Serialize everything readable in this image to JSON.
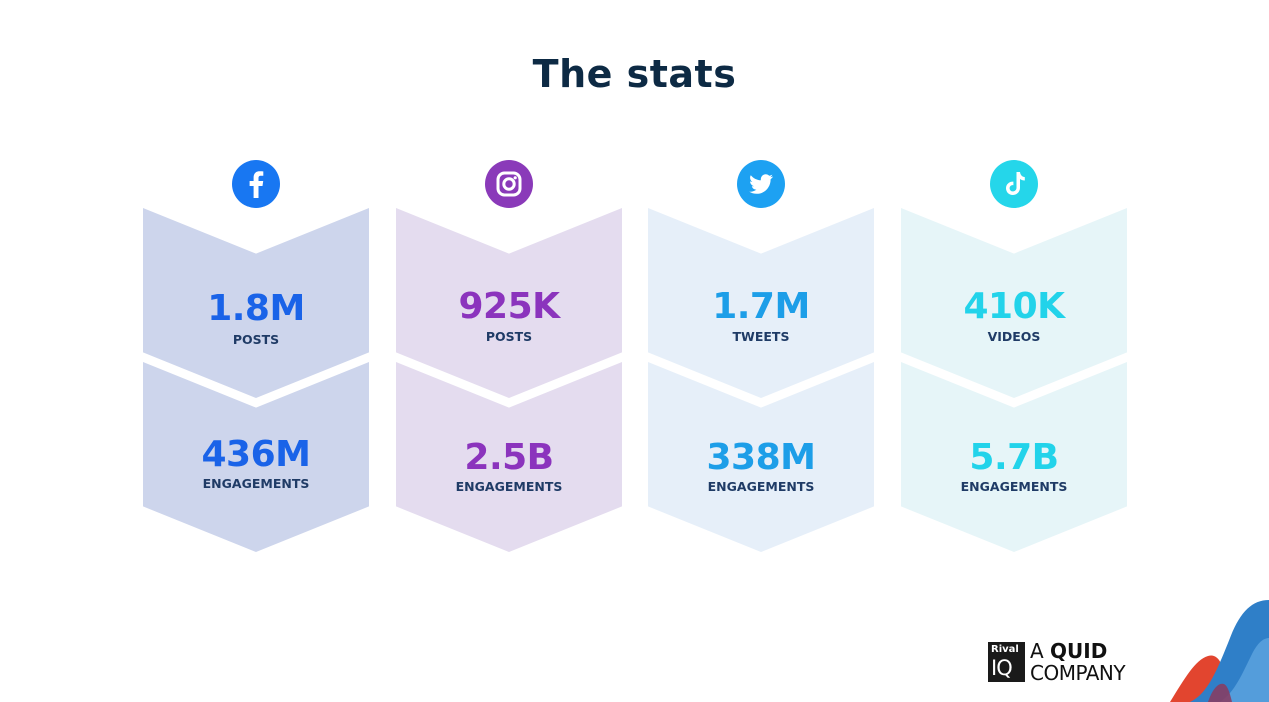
{
  "title": "The stats",
  "columns": [
    {
      "platform": "Facebook",
      "icon": "facebook-icon",
      "color": "#1877f2",
      "bg": "#cdd5ec",
      "value_color": "#1a63e8",
      "top": {
        "value": "1.8M",
        "label": "POSTS"
      },
      "bottom": {
        "value": "436M",
        "label": "ENGAGEMENTS"
      }
    },
    {
      "platform": "Instagram",
      "icon": "instagram-icon",
      "color": "#8a3ab9",
      "bg": "#e4dcef",
      "value_color": "#8b34bd",
      "top": {
        "value": "925K",
        "label": "POSTS"
      },
      "bottom": {
        "value": "2.5B",
        "label": "ENGAGEMENTS"
      }
    },
    {
      "platform": "Twitter",
      "icon": "twitter-icon",
      "color": "#1da1f2",
      "bg": "#e6eff9",
      "value_color": "#1d9ee8",
      "top": {
        "value": "1.7M",
        "label": "TWEETS"
      },
      "bottom": {
        "value": "338M",
        "label": "ENGAGEMENTS"
      }
    },
    {
      "platform": "TikTok",
      "icon": "tiktok-icon",
      "color": "#25d6ea",
      "bg": "#e6f5f8",
      "value_color": "#22d3ea",
      "top": {
        "value": "410K",
        "label": "VIDEOS"
      },
      "bottom": {
        "value": "5.7B",
        "label": "ENGAGEMENTS"
      }
    }
  ],
  "logo": {
    "box_top": "Rival",
    "box_bottom": "IQ",
    "line1_a": "A ",
    "line1_b": "QUID",
    "line2": "COMPANY"
  }
}
